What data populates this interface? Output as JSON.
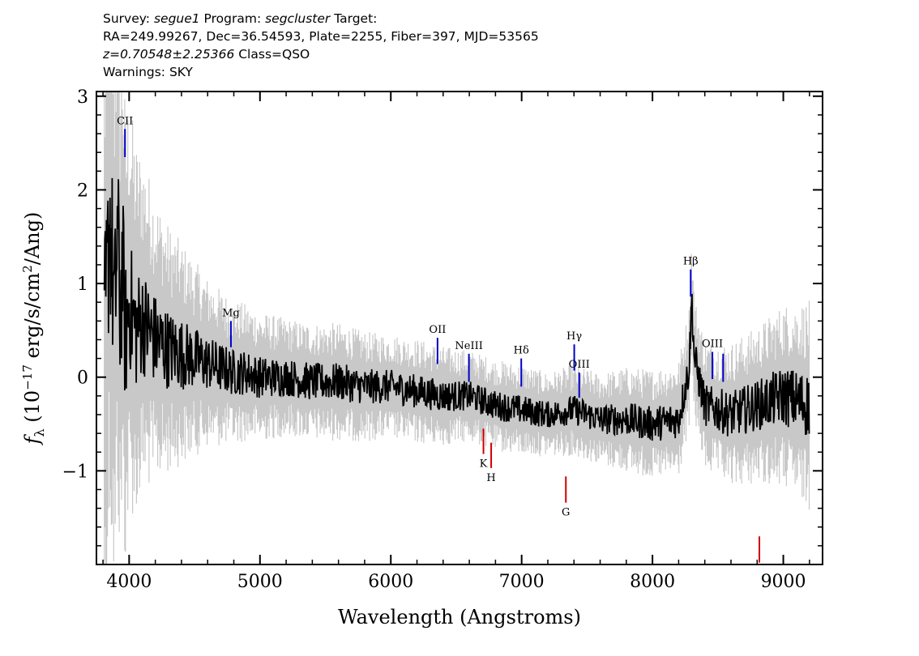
{
  "header": {
    "line1": {
      "survey_prefix": "Survey: ",
      "survey": "segue1",
      "program_prefix": " Program: ",
      "program": "segcluster",
      "target_prefix": " Target:"
    },
    "line2": "RA=249.99267, Dec=36.54593, Plate=2255, Fiber=397, MJD=53565",
    "line3": {
      "redshift": "z=0.70548±2.25366",
      "class": " Class=QSO"
    },
    "line4": "Warnings: SKY"
  },
  "chart_data": {
    "type": "line",
    "xlabel": "Wavelength (Angstroms)",
    "ylabel_parts": {
      "f": "f",
      "sub": "λ",
      "pre": " (10",
      "exp": "−17",
      "mid": " erg/s/cm",
      "exp2": "2",
      "post": "/Ang)"
    },
    "xlim": [
      3750,
      9300
    ],
    "ylim": [
      -2.0,
      3.05
    ],
    "xticks": [
      4000,
      5000,
      6000,
      7000,
      8000,
      9000
    ],
    "xtick_labels": [
      "4000",
      "5000",
      "6000",
      "7000",
      "8000",
      "9000"
    ],
    "yticks": [
      -1,
      0,
      1,
      2,
      3
    ],
    "ytick_labels": [
      "−1",
      "0",
      "1",
      "2",
      "3"
    ],
    "series": [
      {
        "role": "error",
        "color": "#c8c8c8",
        "x": [
          3800,
          3850,
          3900,
          3950,
          4000,
          4100,
          4200,
          4300,
          4400,
          4500,
          4600,
          4800,
          5000,
          5200,
          5400,
          5600,
          5800,
          6000,
          6200,
          6400,
          6600,
          6800,
          7000,
          7200,
          7400,
          7600,
          7800,
          8000,
          8200,
          8400,
          8600,
          8800,
          9000,
          9200
        ],
        "y": [
          2.5,
          2.4,
          2.2,
          1.9,
          1.6,
          1.3,
          1.1,
          0.95,
          0.85,
          0.75,
          0.65,
          0.55,
          0.5,
          0.45,
          0.45,
          0.45,
          0.42,
          0.4,
          0.4,
          0.38,
          0.35,
          0.35,
          0.35,
          0.32,
          0.35,
          0.35,
          0.4,
          0.42,
          0.45,
          0.5,
          0.55,
          0.6,
          0.7,
          0.8
        ]
      },
      {
        "role": "flux",
        "color": "#000000",
        "x": [
          3810,
          3830,
          3850,
          3870,
          3890,
          3910,
          3930,
          3950,
          3970,
          4000,
          4050,
          4100,
          4200,
          4300,
          4400,
          4500,
          4600,
          4700,
          4800,
          4900,
          5000,
          5200,
          5400,
          5600,
          5800,
          6000,
          6200,
          6400,
          6600,
          6800,
          7000,
          7200,
          7400,
          7600,
          7800,
          8000,
          8200,
          8280,
          8300,
          8320,
          8400,
          8600,
          8800,
          9000,
          9200
        ],
        "y": [
          0.3,
          0.9,
          1.8,
          1.2,
          0.6,
          1.6,
          0.7,
          1.2,
          0.4,
          0.8,
          0.5,
          0.6,
          0.4,
          0.3,
          0.25,
          0.2,
          0.15,
          0.1,
          0.05,
          0.05,
          0.0,
          0.0,
          -0.05,
          -0.05,
          -0.1,
          -0.1,
          -0.15,
          -0.2,
          -0.2,
          -0.3,
          -0.35,
          -0.4,
          -0.35,
          -0.45,
          -0.45,
          -0.5,
          -0.45,
          0.1,
          0.85,
          0.2,
          -0.3,
          -0.4,
          -0.3,
          -0.2,
          -0.3
        ]
      }
    ],
    "emission_lines": [
      {
        "label": "CII",
        "x": 3968,
        "y1": 2.65,
        "y2": 2.35,
        "color": "#0000cc"
      },
      {
        "label": "Mg",
        "x": 4778,
        "y1": 0.6,
        "y2": 0.32,
        "color": "#0000cc"
      },
      {
        "label": "OII",
        "x": 6357,
        "y1": 0.42,
        "y2": 0.14,
        "color": "#0000cc"
      },
      {
        "label": "NeIII",
        "x": 6597,
        "y1": 0.25,
        "y2": -0.05,
        "color": "#0000cc"
      },
      {
        "label": "Hδ",
        "x": 6997,
        "y1": 0.2,
        "y2": -0.1,
        "color": "#0000cc"
      },
      {
        "label": "Hγ",
        "x": 7402,
        "y1": 0.35,
        "y2": 0.07,
        "color": "#0000cc"
      },
      {
        "label": "OIII",
        "x": 7440,
        "y1": 0.05,
        "y2": -0.22,
        "color": "#0000cc"
      },
      {
        "label": "Hβ",
        "x": 8292,
        "y1": 1.15,
        "y2": 0.86,
        "color": "#0000cc"
      },
      {
        "label": "OIII",
        "x": 8458,
        "y1": 0.27,
        "y2": -0.02,
        "color": "#0000cc"
      },
      {
        "label": "",
        "x": 8540,
        "y1": 0.25,
        "y2": -0.05,
        "color": "#0000cc"
      }
    ],
    "absorption_lines": [
      {
        "label": "K",
        "x": 6708,
        "y1": -0.55,
        "y2": -0.82,
        "color": "#cc0000"
      },
      {
        "label": "H",
        "x": 6767,
        "y1": -0.7,
        "y2": -0.97,
        "color": "#cc0000"
      },
      {
        "label": "G",
        "x": 7338,
        "y1": -1.06,
        "y2": -1.34,
        "color": "#cc0000"
      },
      {
        "label": "",
        "x": 8817,
        "y1": -1.7,
        "y2": -1.98,
        "color": "#cc0000"
      }
    ]
  }
}
